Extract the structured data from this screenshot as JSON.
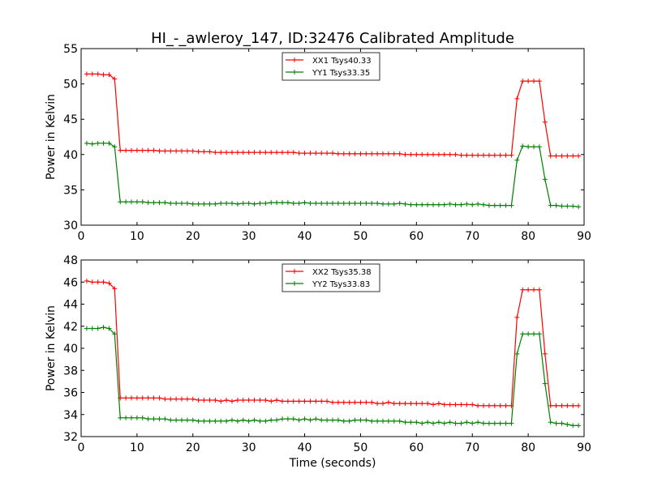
{
  "title": "HI_-_awleroy_147, ID:32476 Calibrated Amplitude",
  "colors": {
    "xx": "#ff0000",
    "yy": "#008000",
    "axis": "#000000",
    "background": "#ffffff"
  },
  "chart_data": [
    {
      "type": "line",
      "title": "HI_-_awleroy_147, ID:32476 Calibrated Amplitude",
      "xlabel": "",
      "ylabel": "Power in Kelvin",
      "xlim": [
        0,
        90
      ],
      "ylim": [
        30,
        55
      ],
      "xticks": [
        0,
        10,
        20,
        30,
        40,
        50,
        60,
        70,
        80,
        90
      ],
      "yticks": [
        30,
        35,
        40,
        45,
        50,
        55
      ],
      "grid": false,
      "legend": "top-center",
      "series": [
        {
          "name": "XX1 Tsys40.33",
          "color": "#ff0000",
          "marker": "+",
          "x": [
            1,
            2,
            3,
            4,
            5,
            6,
            7,
            8,
            9,
            10,
            11,
            12,
            13,
            14,
            15,
            16,
            17,
            18,
            19,
            20,
            21,
            22,
            23,
            24,
            25,
            26,
            27,
            28,
            29,
            30,
            31,
            32,
            33,
            34,
            35,
            36,
            37,
            38,
            39,
            40,
            41,
            42,
            43,
            44,
            45,
            46,
            47,
            48,
            49,
            50,
            51,
            52,
            53,
            54,
            55,
            56,
            57,
            58,
            59,
            60,
            61,
            62,
            63,
            64,
            65,
            66,
            67,
            68,
            69,
            70,
            71,
            72,
            73,
            74,
            75,
            76,
            77,
            78,
            79,
            80,
            81,
            82,
            83,
            84,
            85,
            86,
            87,
            88,
            89
          ],
          "y": [
            51.4,
            51.4,
            51.4,
            51.3,
            51.3,
            50.7,
            40.6,
            40.6,
            40.6,
            40.6,
            40.6,
            40.6,
            40.6,
            40.5,
            40.5,
            40.5,
            40.5,
            40.5,
            40.5,
            40.5,
            40.4,
            40.4,
            40.4,
            40.3,
            40.3,
            40.3,
            40.3,
            40.3,
            40.3,
            40.3,
            40.3,
            40.3,
            40.3,
            40.3,
            40.3,
            40.3,
            40.3,
            40.3,
            40.2,
            40.2,
            40.2,
            40.2,
            40.2,
            40.2,
            40.2,
            40.1,
            40.1,
            40.1,
            40.1,
            40.1,
            40.1,
            40.1,
            40.1,
            40.1,
            40.1,
            40.1,
            40.1,
            40.0,
            40.0,
            40.0,
            40.0,
            40.0,
            40.0,
            40.0,
            40.0,
            40.0,
            40.0,
            39.9,
            39.9,
            39.9,
            39.9,
            39.9,
            39.9,
            39.9,
            39.9,
            39.9,
            39.9,
            47.9,
            50.4,
            50.4,
            50.4,
            50.4,
            44.6,
            39.8,
            39.8,
            39.8,
            39.8,
            39.8,
            39.8
          ]
        },
        {
          "name": "YY1 Tsys33.35",
          "color": "#008000",
          "marker": "+",
          "x": [
            1,
            2,
            3,
            4,
            5,
            6,
            7,
            8,
            9,
            10,
            11,
            12,
            13,
            14,
            15,
            16,
            17,
            18,
            19,
            20,
            21,
            22,
            23,
            24,
            25,
            26,
            27,
            28,
            29,
            30,
            31,
            32,
            33,
            34,
            35,
            36,
            37,
            38,
            39,
            40,
            41,
            42,
            43,
            44,
            45,
            46,
            47,
            48,
            49,
            50,
            51,
            52,
            53,
            54,
            55,
            56,
            57,
            58,
            59,
            60,
            61,
            62,
            63,
            64,
            65,
            66,
            67,
            68,
            69,
            70,
            71,
            72,
            73,
            74,
            75,
            76,
            77,
            78,
            79,
            80,
            81,
            82,
            83,
            84,
            85,
            86,
            87,
            88,
            89
          ],
          "y": [
            41.6,
            41.5,
            41.6,
            41.6,
            41.6,
            41.1,
            33.3,
            33.3,
            33.3,
            33.3,
            33.3,
            33.2,
            33.2,
            33.2,
            33.2,
            33.1,
            33.1,
            33.1,
            33.1,
            33.0,
            33.0,
            33.0,
            33.0,
            33.0,
            33.1,
            33.1,
            33.1,
            33.0,
            33.1,
            33.1,
            33.0,
            33.1,
            33.1,
            33.2,
            33.2,
            33.2,
            33.2,
            33.1,
            33.1,
            33.2,
            33.1,
            33.1,
            33.1,
            33.1,
            33.1,
            33.1,
            33.1,
            33.1,
            33.1,
            33.1,
            33.1,
            33.1,
            33.1,
            33.0,
            33.0,
            33.0,
            33.1,
            33.0,
            32.9,
            32.9,
            32.9,
            32.9,
            32.9,
            32.9,
            32.9,
            33.0,
            32.9,
            32.9,
            33.0,
            32.9,
            33.0,
            32.9,
            32.8,
            32.8,
            32.8,
            32.8,
            32.8,
            39.2,
            41.2,
            41.1,
            41.1,
            41.1,
            36.5,
            32.8,
            32.8,
            32.7,
            32.7,
            32.7,
            32.6
          ]
        }
      ]
    },
    {
      "type": "line",
      "title": "",
      "xlabel": "Time (seconds)",
      "ylabel": "Power in Kelvin",
      "xlim": [
        0,
        90
      ],
      "ylim": [
        32,
        48
      ],
      "xticks": [
        0,
        10,
        20,
        30,
        40,
        50,
        60,
        70,
        80,
        90
      ],
      "yticks": [
        32,
        34,
        36,
        38,
        40,
        42,
        44,
        46,
        48
      ],
      "grid": false,
      "legend": "top-center",
      "series": [
        {
          "name": "XX2 Tsys35.38",
          "color": "#ff0000",
          "marker": "+",
          "x": [
            1,
            2,
            3,
            4,
            5,
            6,
            7,
            8,
            9,
            10,
            11,
            12,
            13,
            14,
            15,
            16,
            17,
            18,
            19,
            20,
            21,
            22,
            23,
            24,
            25,
            26,
            27,
            28,
            29,
            30,
            31,
            32,
            33,
            34,
            35,
            36,
            37,
            38,
            39,
            40,
            41,
            42,
            43,
            44,
            45,
            46,
            47,
            48,
            49,
            50,
            51,
            52,
            53,
            54,
            55,
            56,
            57,
            58,
            59,
            60,
            61,
            62,
            63,
            64,
            65,
            66,
            67,
            68,
            69,
            70,
            71,
            72,
            73,
            74,
            75,
            76,
            77,
            78,
            79,
            80,
            81,
            82,
            83,
            84,
            85,
            86,
            87,
            88,
            89
          ],
          "y": [
            46.1,
            46.0,
            46.0,
            46.0,
            45.9,
            45.4,
            35.5,
            35.5,
            35.5,
            35.5,
            35.5,
            35.5,
            35.5,
            35.5,
            35.4,
            35.4,
            35.4,
            35.4,
            35.4,
            35.4,
            35.3,
            35.3,
            35.3,
            35.3,
            35.2,
            35.3,
            35.2,
            35.3,
            35.3,
            35.3,
            35.3,
            35.3,
            35.3,
            35.2,
            35.3,
            35.2,
            35.2,
            35.2,
            35.2,
            35.2,
            35.2,
            35.2,
            35.2,
            35.2,
            35.1,
            35.1,
            35.1,
            35.1,
            35.1,
            35.1,
            35.1,
            35.1,
            35.0,
            35.0,
            35.1,
            35.0,
            35.0,
            35.0,
            35.0,
            35.0,
            35.0,
            35.0,
            34.9,
            35.0,
            34.9,
            34.9,
            34.9,
            34.9,
            34.9,
            34.9,
            34.8,
            34.8,
            34.8,
            34.8,
            34.8,
            34.8,
            34.8,
            42.8,
            45.3,
            45.3,
            45.3,
            45.3,
            39.5,
            34.8,
            34.8,
            34.8,
            34.8,
            34.8,
            34.8
          ]
        },
        {
          "name": "YY2 Tsys33.83",
          "color": "#008000",
          "marker": "+",
          "x": [
            1,
            2,
            3,
            4,
            5,
            6,
            7,
            8,
            9,
            10,
            11,
            12,
            13,
            14,
            15,
            16,
            17,
            18,
            19,
            20,
            21,
            22,
            23,
            24,
            25,
            26,
            27,
            28,
            29,
            30,
            31,
            32,
            33,
            34,
            35,
            36,
            37,
            38,
            39,
            40,
            41,
            42,
            43,
            44,
            45,
            46,
            47,
            48,
            49,
            50,
            51,
            52,
            53,
            54,
            55,
            56,
            57,
            58,
            59,
            60,
            61,
            62,
            63,
            64,
            65,
            66,
            67,
            68,
            69,
            70,
            71,
            72,
            73,
            74,
            75,
            76,
            77,
            78,
            79,
            80,
            81,
            82,
            83,
            84,
            85,
            86,
            87,
            88,
            89
          ],
          "y": [
            41.8,
            41.8,
            41.8,
            41.9,
            41.8,
            41.3,
            33.7,
            33.7,
            33.7,
            33.7,
            33.7,
            33.6,
            33.6,
            33.6,
            33.6,
            33.5,
            33.5,
            33.5,
            33.5,
            33.5,
            33.4,
            33.4,
            33.4,
            33.4,
            33.4,
            33.4,
            33.5,
            33.4,
            33.5,
            33.4,
            33.5,
            33.4,
            33.4,
            33.5,
            33.5,
            33.6,
            33.6,
            33.6,
            33.5,
            33.6,
            33.5,
            33.6,
            33.5,
            33.5,
            33.5,
            33.5,
            33.4,
            33.4,
            33.5,
            33.5,
            33.5,
            33.4,
            33.4,
            33.4,
            33.4,
            33.4,
            33.4,
            33.3,
            33.3,
            33.3,
            33.2,
            33.3,
            33.2,
            33.3,
            33.2,
            33.3,
            33.2,
            33.2,
            33.3,
            33.2,
            33.3,
            33.2,
            33.2,
            33.2,
            33.2,
            33.2,
            33.2,
            39.5,
            41.3,
            41.3,
            41.3,
            41.3,
            36.8,
            33.3,
            33.2,
            33.2,
            33.1,
            33.0,
            33.0
          ]
        }
      ]
    }
  ]
}
